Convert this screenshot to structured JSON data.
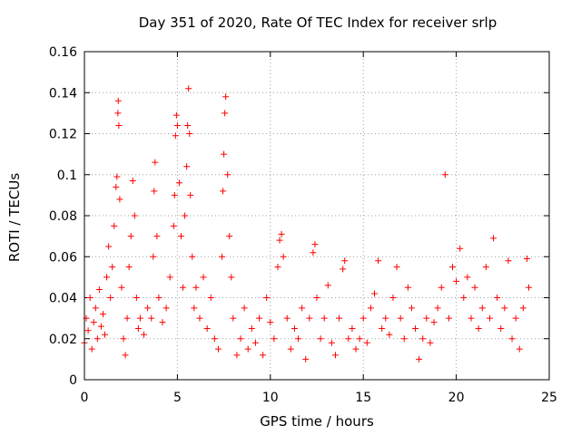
{
  "chart_data": {
    "type": "scatter",
    "title": "Day 351 of 2020, Rate Of TEC Index for receiver srlp",
    "xlabel": "GPS time / hours",
    "ylabel": "ROTI / TECUs",
    "xlim": [
      0,
      25
    ],
    "ylim": [
      0,
      0.16
    ],
    "xticks": [
      "0",
      "5",
      "10",
      "15",
      "20",
      "25"
    ],
    "yticks": [
      "0",
      "0.02",
      "0.04",
      "0.06",
      "0.08",
      "0.1",
      "0.12",
      "0.14",
      "0.16"
    ],
    "grid": true,
    "marker": "+",
    "color": "#ff0000",
    "series": [
      {
        "name": "ROTI",
        "points": [
          [
            0.0,
            0.018
          ],
          [
            0.1,
            0.03
          ],
          [
            0.2,
            0.024
          ],
          [
            0.3,
            0.04
          ],
          [
            0.4,
            0.015
          ],
          [
            0.5,
            0.028
          ],
          [
            0.6,
            0.035
          ],
          [
            0.7,
            0.02
          ],
          [
            0.8,
            0.044
          ],
          [
            0.9,
            0.026
          ],
          [
            1.0,
            0.032
          ],
          [
            1.1,
            0.022
          ],
          [
            1.2,
            0.05
          ],
          [
            1.3,
            0.065
          ],
          [
            1.4,
            0.04
          ],
          [
            1.5,
            0.055
          ],
          [
            1.6,
            0.075
          ],
          [
            1.7,
            0.094
          ],
          [
            1.75,
            0.099
          ],
          [
            1.8,
            0.13
          ],
          [
            1.82,
            0.136
          ],
          [
            1.85,
            0.124
          ],
          [
            1.9,
            0.088
          ],
          [
            2.0,
            0.045
          ],
          [
            2.1,
            0.02
          ],
          [
            2.2,
            0.012
          ],
          [
            2.3,
            0.03
          ],
          [
            2.4,
            0.055
          ],
          [
            2.5,
            0.07
          ],
          [
            2.6,
            0.097
          ],
          [
            2.7,
            0.08
          ],
          [
            2.8,
            0.04
          ],
          [
            2.9,
            0.025
          ],
          [
            3.0,
            0.03
          ],
          [
            3.2,
            0.022
          ],
          [
            3.4,
            0.035
          ],
          [
            3.6,
            0.03
          ],
          [
            3.7,
            0.06
          ],
          [
            3.75,
            0.092
          ],
          [
            3.8,
            0.106
          ],
          [
            3.9,
            0.07
          ],
          [
            4.0,
            0.04
          ],
          [
            4.2,
            0.028
          ],
          [
            4.4,
            0.035
          ],
          [
            4.6,
            0.05
          ],
          [
            4.8,
            0.075
          ],
          [
            4.85,
            0.09
          ],
          [
            4.9,
            0.119
          ],
          [
            4.95,
            0.129
          ],
          [
            5.0,
            0.124
          ],
          [
            5.1,
            0.096
          ],
          [
            5.2,
            0.07
          ],
          [
            5.3,
            0.045
          ],
          [
            5.4,
            0.08
          ],
          [
            5.5,
            0.104
          ],
          [
            5.55,
            0.124
          ],
          [
            5.6,
            0.142
          ],
          [
            5.65,
            0.12
          ],
          [
            5.7,
            0.09
          ],
          [
            5.8,
            0.06
          ],
          [
            5.9,
            0.035
          ],
          [
            6.0,
            0.045
          ],
          [
            6.2,
            0.03
          ],
          [
            6.4,
            0.05
          ],
          [
            6.6,
            0.025
          ],
          [
            6.8,
            0.04
          ],
          [
            7.0,
            0.02
          ],
          [
            7.2,
            0.015
          ],
          [
            7.4,
            0.06
          ],
          [
            7.45,
            0.092
          ],
          [
            7.5,
            0.11
          ],
          [
            7.55,
            0.13
          ],
          [
            7.6,
            0.138
          ],
          [
            7.7,
            0.1
          ],
          [
            7.8,
            0.07
          ],
          [
            7.9,
            0.05
          ],
          [
            8.0,
            0.03
          ],
          [
            8.2,
            0.012
          ],
          [
            8.4,
            0.02
          ],
          [
            8.6,
            0.035
          ],
          [
            8.8,
            0.015
          ],
          [
            9.0,
            0.025
          ],
          [
            9.2,
            0.018
          ],
          [
            9.4,
            0.03
          ],
          [
            9.6,
            0.012
          ],
          [
            9.8,
            0.04
          ],
          [
            10.0,
            0.028
          ],
          [
            10.2,
            0.02
          ],
          [
            10.4,
            0.055
          ],
          [
            10.5,
            0.068
          ],
          [
            10.6,
            0.071
          ],
          [
            10.7,
            0.06
          ],
          [
            10.9,
            0.03
          ],
          [
            11.1,
            0.015
          ],
          [
            11.3,
            0.025
          ],
          [
            11.5,
            0.02
          ],
          [
            11.7,
            0.035
          ],
          [
            11.9,
            0.01
          ],
          [
            12.1,
            0.03
          ],
          [
            12.3,
            0.062
          ],
          [
            12.4,
            0.066
          ],
          [
            12.5,
            0.04
          ],
          [
            12.7,
            0.02
          ],
          [
            12.9,
            0.03
          ],
          [
            13.1,
            0.046
          ],
          [
            13.3,
            0.018
          ],
          [
            13.5,
            0.012
          ],
          [
            13.7,
            0.03
          ],
          [
            13.9,
            0.054
          ],
          [
            14.0,
            0.058
          ],
          [
            14.2,
            0.02
          ],
          [
            14.4,
            0.025
          ],
          [
            14.6,
            0.015
          ],
          [
            14.8,
            0.02
          ],
          [
            15.0,
            0.03
          ],
          [
            15.2,
            0.018
          ],
          [
            15.4,
            0.035
          ],
          [
            15.6,
            0.042
          ],
          [
            15.8,
            0.058
          ],
          [
            16.0,
            0.025
          ],
          [
            16.2,
            0.03
          ],
          [
            16.4,
            0.022
          ],
          [
            16.6,
            0.04
          ],
          [
            16.8,
            0.055
          ],
          [
            17.0,
            0.03
          ],
          [
            17.2,
            0.02
          ],
          [
            17.4,
            0.045
          ],
          [
            17.6,
            0.035
          ],
          [
            17.8,
            0.025
          ],
          [
            18.0,
            0.01
          ],
          [
            18.2,
            0.02
          ],
          [
            18.4,
            0.03
          ],
          [
            18.6,
            0.018
          ],
          [
            18.8,
            0.028
          ],
          [
            19.0,
            0.035
          ],
          [
            19.2,
            0.045
          ],
          [
            19.4,
            0.1
          ],
          [
            19.6,
            0.03
          ],
          [
            19.8,
            0.055
          ],
          [
            20.0,
            0.048
          ],
          [
            20.2,
            0.064
          ],
          [
            20.4,
            0.04
          ],
          [
            20.6,
            0.05
          ],
          [
            20.8,
            0.03
          ],
          [
            21.0,
            0.045
          ],
          [
            21.2,
            0.025
          ],
          [
            21.4,
            0.035
          ],
          [
            21.6,
            0.055
          ],
          [
            21.8,
            0.03
          ],
          [
            22.0,
            0.069
          ],
          [
            22.2,
            0.04
          ],
          [
            22.4,
            0.025
          ],
          [
            22.6,
            0.035
          ],
          [
            22.8,
            0.058
          ],
          [
            23.0,
            0.02
          ],
          [
            23.2,
            0.03
          ],
          [
            23.4,
            0.015
          ],
          [
            23.6,
            0.035
          ],
          [
            23.8,
            0.059
          ],
          [
            23.9,
            0.045
          ]
        ]
      }
    ]
  }
}
